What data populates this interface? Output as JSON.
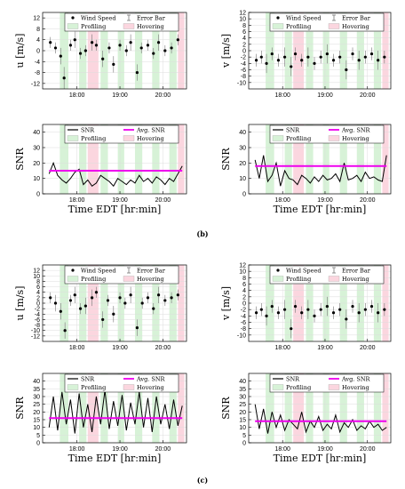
{
  "figure": {
    "captions": [
      "(b)",
      "(c)"
    ]
  },
  "colors": {
    "profiling": "#d7f2d7",
    "hovering": "#fbd6df",
    "snr_line": "#000000",
    "avg_snr": "#ee00ee",
    "wind_marker": "#000000",
    "error_bar": "#777777"
  },
  "shaded_intervals": {
    "profiling": [
      [
        17.6,
        17.8
      ],
      [
        18.05,
        18.22
      ],
      [
        18.55,
        18.72
      ],
      [
        18.95,
        19.1
      ],
      [
        19.35,
        19.52
      ],
      [
        19.75,
        19.92
      ],
      [
        20.15,
        20.32
      ]
    ],
    "hovering": [
      [
        18.25,
        18.5
      ],
      [
        20.35,
        20.5
      ]
    ]
  },
  "chart_data": [
    {
      "type": "scatter",
      "panel": "b-u",
      "ylabel": "u [m/s]",
      "xlabel": "",
      "x_tick_labels": [
        "18:00",
        "19:00",
        "20:00"
      ],
      "x_ticks": [
        18,
        19,
        20
      ],
      "xlim": [
        17.2,
        20.55
      ],
      "ylim": [
        -14,
        14
      ],
      "y_ticks": [
        -12,
        -8,
        -4,
        0,
        4,
        8,
        12
      ],
      "y_tick_labels": [
        "-12",
        "-8",
        "-4",
        "0",
        "4",
        "8",
        "12"
      ],
      "grid": true,
      "legend": [
        "Wind Speed",
        "Error Bar",
        "Profiling",
        "Hovering"
      ],
      "legend_position": "top",
      "series": [
        {
          "name": "Wind Speed",
          "x": [
            17.38,
            17.5,
            17.62,
            17.7,
            17.85,
            17.95,
            18.08,
            18.2,
            18.35,
            18.45,
            18.6,
            18.75,
            18.85,
            19.0,
            19.15,
            19.25,
            19.4,
            19.5,
            19.65,
            19.78,
            19.9,
            20.05,
            20.2,
            20.35
          ],
          "y": [
            3,
            1,
            -2,
            -10,
            2,
            4,
            -1,
            0,
            3,
            2,
            -3,
            1,
            -5,
            2,
            0,
            3,
            -8,
            1,
            2,
            -1,
            3,
            0,
            1,
            4
          ],
          "err": [
            2,
            2,
            3,
            4,
            2,
            3,
            2,
            2,
            3,
            2,
            3,
            2,
            3,
            2,
            2,
            3,
            3,
            2,
            2,
            2,
            3,
            2,
            2,
            2
          ]
        }
      ]
    },
    {
      "type": "scatter",
      "panel": "b-v",
      "ylabel": "v [m/s]",
      "xlabel": "",
      "x_tick_labels": [
        "18:00",
        "19:00",
        "20:00"
      ],
      "x_ticks": [
        18,
        19,
        20
      ],
      "xlim": [
        17.2,
        20.55
      ],
      "ylim": [
        -12,
        12
      ],
      "y_ticks": [
        -10,
        -8,
        -6,
        -4,
        -2,
        0,
        2,
        4,
        6,
        8,
        10,
        12
      ],
      "y_tick_labels": [
        "-10",
        "-8",
        "-6",
        "-4",
        "-2",
        "0",
        "2",
        "4",
        "6",
        "8",
        "10",
        "12"
      ],
      "grid": true,
      "legend": [
        "Wind Speed",
        "Error Bar",
        "Profiling",
        "Hovering"
      ],
      "legend_position": "top",
      "series": [
        {
          "name": "Wind Speed",
          "x": [
            17.38,
            17.5,
            17.62,
            17.75,
            17.9,
            18.05,
            18.2,
            18.3,
            18.45,
            18.6,
            18.75,
            18.9,
            19.05,
            19.2,
            19.35,
            19.5,
            19.65,
            19.8,
            19.95,
            20.1,
            20.25,
            20.4
          ],
          "y": [
            -3,
            -2,
            -4,
            -1,
            -3,
            -2,
            -5,
            -1,
            -3,
            -2,
            -4,
            -2,
            -1,
            -3,
            -2,
            -6,
            -1,
            -3,
            -2,
            -1,
            -3,
            -2
          ],
          "err": [
            2,
            2,
            3,
            2,
            2,
            3,
            3,
            2,
            2,
            3,
            2,
            2,
            3,
            2,
            2,
            3,
            2,
            3,
            2,
            2,
            3,
            2
          ]
        }
      ]
    },
    {
      "type": "line",
      "panel": "b-snr-left",
      "ylabel": "SNR",
      "xlabel": "Time EDT [hr:min]",
      "x_tick_labels": [
        "18:00",
        "19:00",
        "20:00"
      ],
      "x_ticks": [
        18,
        19,
        20
      ],
      "xlim": [
        17.2,
        20.55
      ],
      "ylim": [
        0,
        45
      ],
      "y_ticks": [
        0,
        10,
        20,
        30,
        40
      ],
      "y_tick_labels": [
        "0",
        "10",
        "20",
        "30",
        "40"
      ],
      "grid": true,
      "legend": [
        "SNR",
        "Avg. SNR",
        "Profiling",
        "Hovering"
      ],
      "legend_position": "top",
      "series": [
        {
          "name": "SNR",
          "x": [
            17.35,
            17.45,
            17.55,
            17.65,
            17.75,
            17.85,
            17.95,
            18.05,
            18.15,
            18.25,
            18.35,
            18.45,
            18.55,
            18.65,
            18.75,
            18.85,
            18.95,
            19.05,
            19.15,
            19.25,
            19.35,
            19.45,
            19.55,
            19.65,
            19.75,
            19.85,
            19.95,
            20.05,
            20.15,
            20.25,
            20.35,
            20.45
          ],
          "y": [
            13,
            20,
            12,
            9,
            7,
            10,
            14,
            16,
            6,
            9,
            5,
            7,
            12,
            10,
            8,
            5,
            10,
            8,
            6,
            9,
            7,
            12,
            8,
            10,
            7,
            11,
            9,
            6,
            10,
            8,
            13,
            18
          ]
        },
        {
          "name": "Avg. SNR",
          "x": [
            17.35,
            20.45
          ],
          "y": [
            15,
            15
          ]
        }
      ]
    },
    {
      "type": "line",
      "panel": "b-snr-right",
      "ylabel": "SNR",
      "xlabel": "Time EDT [hr:min]",
      "x_tick_labels": [
        "18:00",
        "19:00",
        "20:00"
      ],
      "x_ticks": [
        18,
        19,
        20
      ],
      "xlim": [
        17.2,
        20.55
      ],
      "ylim": [
        0,
        45
      ],
      "y_ticks": [
        0,
        10,
        20,
        30,
        40
      ],
      "y_tick_labels": [
        "0",
        "10",
        "20",
        "30",
        "40"
      ],
      "grid": true,
      "legend": [
        "SNR",
        "Avg. SNR",
        "Profiling",
        "Hovering"
      ],
      "legend_position": "top",
      "series": [
        {
          "name": "SNR",
          "x": [
            17.35,
            17.45,
            17.55,
            17.65,
            17.75,
            17.85,
            17.95,
            18.05,
            18.15,
            18.25,
            18.35,
            18.45,
            18.55,
            18.65,
            18.75,
            18.85,
            18.95,
            19.05,
            19.15,
            19.25,
            19.35,
            19.45,
            19.55,
            19.65,
            19.75,
            19.85,
            19.95,
            20.05,
            20.15,
            20.25,
            20.35,
            20.45
          ],
          "y": [
            22,
            10,
            25,
            8,
            12,
            20,
            5,
            15,
            10,
            9,
            6,
            12,
            10,
            7,
            11,
            8,
            12,
            9,
            10,
            13,
            8,
            20,
            9,
            10,
            12,
            8,
            14,
            10,
            11,
            9,
            8,
            25
          ]
        },
        {
          "name": "Avg. SNR",
          "x": [
            17.35,
            20.45
          ],
          "y": [
            18,
            18
          ]
        }
      ]
    },
    {
      "type": "scatter",
      "panel": "c-u",
      "ylabel": "u [m/s]",
      "xlabel": "",
      "x_tick_labels": [
        "18:00",
        "19:00",
        "20:00"
      ],
      "x_ticks": [
        18,
        19,
        20
      ],
      "xlim": [
        17.2,
        20.55
      ],
      "ylim": [
        -14,
        14
      ],
      "y_ticks": [
        -12,
        -10,
        -8,
        -6,
        -4,
        -2,
        0,
        2,
        4,
        6,
        8,
        10,
        12
      ],
      "y_tick_labels": [
        "-12",
        "-10",
        "-8",
        "-6",
        "-4",
        "-2",
        "0",
        "2",
        "4",
        "6",
        "8",
        "10",
        "12"
      ],
      "grid": true,
      "legend": [
        "Wind Speed",
        "Error Bar",
        "Profiling",
        "Hovering"
      ],
      "legend_position": "top",
      "series": [
        {
          "name": "Wind Speed",
          "x": [
            17.38,
            17.5,
            17.62,
            17.72,
            17.85,
            17.95,
            18.08,
            18.2,
            18.35,
            18.45,
            18.6,
            18.72,
            18.85,
            19.0,
            19.12,
            19.25,
            19.4,
            19.52,
            19.65,
            19.78,
            19.9,
            20.05,
            20.2,
            20.35
          ],
          "y": [
            2,
            0,
            -3,
            -10,
            1,
            3,
            -2,
            -1,
            2,
            4,
            -6,
            1,
            -4,
            2,
            0,
            3,
            -9,
            0,
            2,
            -2,
            3,
            1,
            2,
            3
          ],
          "err": [
            2,
            3,
            3,
            3,
            2,
            3,
            2,
            3,
            3,
            2,
            3,
            2,
            3,
            2,
            2,
            3,
            3,
            2,
            2,
            2,
            3,
            2,
            2,
            2
          ]
        }
      ]
    },
    {
      "type": "scatter",
      "panel": "c-v",
      "ylabel": "v [m/s]",
      "xlabel": "",
      "x_tick_labels": [
        "18:00",
        "19:00",
        "20:00"
      ],
      "x_ticks": [
        18,
        19,
        20
      ],
      "xlim": [
        17.2,
        20.55
      ],
      "ylim": [
        -12,
        12
      ],
      "y_ticks": [
        -10,
        -8,
        -6,
        -4,
        -2,
        0,
        2,
        4,
        6,
        8,
        10,
        12
      ],
      "y_tick_labels": [
        "-10",
        "-8",
        "-6",
        "-4",
        "-2",
        "0",
        "2",
        "4",
        "6",
        "8",
        "10",
        "12"
      ],
      "grid": true,
      "legend": [
        "Wind Speed",
        "Error Bar",
        "Profiling",
        "Hovering"
      ],
      "legend_position": "top",
      "series": [
        {
          "name": "Wind Speed",
          "x": [
            17.38,
            17.5,
            17.62,
            17.75,
            17.9,
            18.05,
            18.2,
            18.3,
            18.45,
            18.6,
            18.75,
            18.9,
            19.05,
            19.2,
            19.35,
            19.5,
            19.65,
            19.8,
            19.95,
            20.1,
            20.25,
            20.4
          ],
          "y": [
            -3,
            -2,
            -4,
            -1,
            -3,
            -2,
            -8,
            -1,
            -3,
            -2,
            -4,
            -2,
            -1,
            -3,
            -2,
            -5,
            -1,
            -3,
            -2,
            -1,
            -3,
            -2
          ],
          "err": [
            2,
            2,
            3,
            2,
            2,
            3,
            3,
            2,
            2,
            3,
            2,
            2,
            3,
            2,
            2,
            3,
            2,
            3,
            2,
            2,
            3,
            2
          ]
        }
      ]
    },
    {
      "type": "line",
      "panel": "c-snr-left",
      "ylabel": "SNR",
      "xlabel": "Time EDT [hr:min]",
      "x_tick_labels": [
        "18:00",
        "19:00",
        "20:00"
      ],
      "x_ticks": [
        18,
        19,
        20
      ],
      "xlim": [
        17.2,
        20.55
      ],
      "ylim": [
        0,
        45
      ],
      "y_ticks": [
        0,
        5,
        10,
        15,
        20,
        25,
        30,
        35,
        40
      ],
      "y_tick_labels": [
        "0",
        "5",
        "10",
        "15",
        "20",
        "25",
        "30",
        "35",
        "40"
      ],
      "grid": true,
      "legend": [
        "SNR",
        "Avg. SNR",
        "Profiling",
        "Hovering"
      ],
      "legend_position": "top",
      "series": [
        {
          "name": "SNR",
          "x": [
            17.35,
            17.45,
            17.55,
            17.65,
            17.75,
            17.85,
            17.95,
            18.05,
            18.15,
            18.25,
            18.35,
            18.45,
            18.55,
            18.65,
            18.75,
            18.85,
            18.95,
            19.05,
            19.15,
            19.25,
            19.35,
            19.45,
            19.55,
            19.65,
            19.75,
            19.85,
            19.95,
            20.05,
            20.15,
            20.25,
            20.35,
            20.45
          ],
          "y": [
            10,
            30,
            8,
            33,
            12,
            28,
            6,
            32,
            10,
            25,
            7,
            30,
            12,
            34,
            9,
            27,
            11,
            31,
            8,
            26,
            12,
            33,
            10,
            29,
            7,
            30,
            12,
            25,
            9,
            28,
            11,
            24
          ]
        },
        {
          "name": "Avg. SNR",
          "x": [
            17.35,
            20.45
          ],
          "y": [
            16,
            16
          ]
        }
      ]
    },
    {
      "type": "line",
      "panel": "c-snr-right",
      "ylabel": "SNR",
      "xlabel": "Time EDT [hr:min]",
      "x_tick_labels": [
        "18:00",
        "19:00",
        "20:00"
      ],
      "x_ticks": [
        18,
        19,
        20
      ],
      "xlim": [
        17.2,
        20.55
      ],
      "ylim": [
        0,
        45
      ],
      "y_ticks": [
        0,
        5,
        10,
        15,
        20,
        25,
        30,
        35,
        40
      ],
      "y_tick_labels": [
        "0",
        "5",
        "10",
        "15",
        "20",
        "25",
        "30",
        "35",
        "40"
      ],
      "grid": true,
      "legend": [
        "SNR",
        "Avg. SNR",
        "Profiling",
        "Hovering"
      ],
      "legend_position": "top",
      "series": [
        {
          "name": "SNR",
          "x": [
            17.35,
            17.45,
            17.55,
            17.65,
            17.75,
            17.85,
            17.95,
            18.05,
            18.15,
            18.25,
            18.35,
            18.45,
            18.55,
            18.65,
            18.75,
            18.85,
            18.95,
            19.05,
            19.15,
            19.25,
            19.35,
            19.45,
            19.55,
            19.65,
            19.75,
            19.85,
            19.95,
            20.05,
            20.15,
            20.25,
            20.35,
            20.45
          ],
          "y": [
            25,
            9,
            22,
            6,
            20,
            10,
            18,
            8,
            15,
            12,
            9,
            20,
            7,
            14,
            10,
            17,
            8,
            12,
            9,
            18,
            7,
            13,
            10,
            15,
            8,
            11,
            9,
            14,
            10,
            12,
            8,
            10
          ]
        },
        {
          "name": "Avg. SNR",
          "x": [
            17.35,
            20.45
          ],
          "y": [
            14,
            14
          ]
        }
      ]
    }
  ]
}
